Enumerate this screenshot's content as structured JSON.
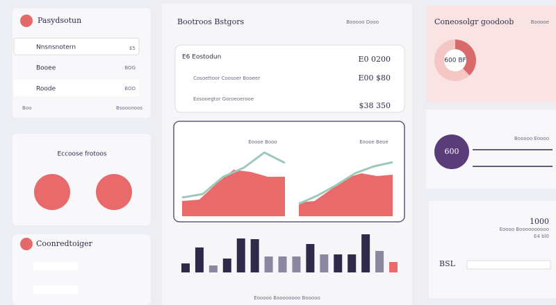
{
  "sidebar": {
    "title": "Pasydsotun",
    "items": [
      "Nnsnsnotern",
      "Booee",
      "Roode"
    ],
    "meta": [
      "E5",
      "BOG",
      "BOO"
    ],
    "footer": [
      "Boo",
      "Bsooonoos"
    ]
  },
  "promo": {
    "title": "Eccoose frotoos"
  },
  "contacts": {
    "title": "Coonredtoiger"
  },
  "main": {
    "title": "Bootroos Bstgors",
    "meta": "Booooo Dooo",
    "list": {
      "title": "E6 Eostodun",
      "rows": [
        {
          "label": "Cosoettoor Coosoer Booeer",
          "value": "E00 $80"
        },
        {
          "label": "Eosooegtor Goroeoerooe",
          "value": "$38 350"
        }
      ],
      "top_value": "E0 0200"
    },
    "area_charts": [
      {
        "caption": "Eoooe Booo",
        "area": [
          22,
          24,
          47,
          67,
          64,
          57,
          57
        ],
        "line": [
          27,
          32,
          57,
          70,
          92,
          77
        ]
      },
      {
        "caption": "Eoooe Beoe",
        "area": [
          20,
          22,
          38,
          55,
          62,
          58,
          60
        ],
        "line": [
          18,
          30,
          45,
          62,
          72,
          78
        ]
      }
    ],
    "bars": {
      "values": [
        13,
        36,
        10,
        20,
        49,
        48,
        23,
        23,
        23,
        41,
        26,
        26,
        26,
        55,
        31,
        15
      ],
      "colors": [
        "#2e2b4a",
        "#2e2b4a",
        "#8a88a0",
        "#2e2b4a",
        "#2e2b4a",
        "#2e2b4a",
        "#8a88a0",
        "#8a88a0",
        "#8a88a0",
        "#2e2b4a",
        "#8a88a0",
        "#2e2b4a",
        "#2e2b4a",
        "#2e2b4a",
        "#8a88a0",
        "#e86a6a"
      ]
    },
    "footer": "Eooooo Boooooooo Booooo"
  },
  "right": {
    "title": "Coneosolgr goodoob",
    "meta": "Booooe",
    "pie": {
      "values": [
        38,
        62
      ],
      "colors": [
        "#d9696b",
        "#f4c6c4"
      ],
      "center": "600 BF"
    },
    "gauge": "600",
    "gauge_label": "Booooo Eoooo",
    "stat": "1000",
    "stat_label": "Eoooo Boooooooooo",
    "stat_sub": "E4 bl0",
    "code": "BSL"
  }
}
